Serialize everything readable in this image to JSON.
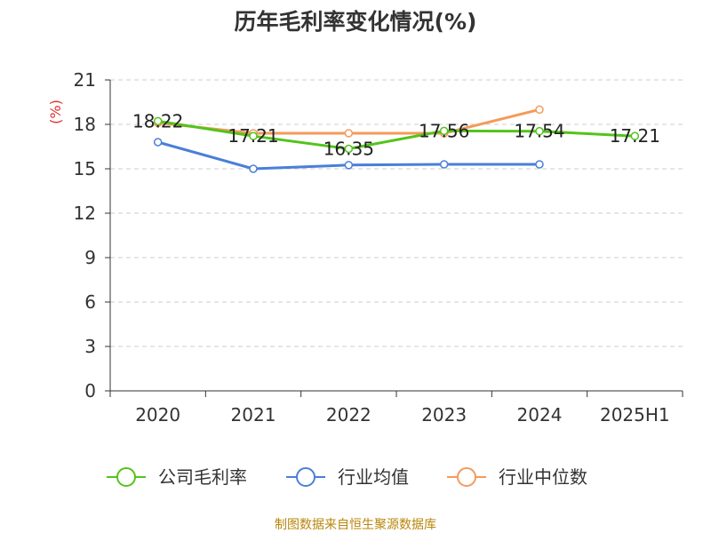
{
  "chart_data": {
    "type": "line",
    "title": "历年毛利率变化情况(%)",
    "ylabel": "(%)",
    "categories": [
      "2020",
      "2021",
      "2022",
      "2023",
      "2024",
      "2025H1"
    ],
    "ylim": [
      0,
      21
    ],
    "yticks": [
      0,
      3,
      6,
      9,
      12,
      15,
      18,
      21
    ],
    "grid": true,
    "legend_position": "bottom",
    "series": [
      {
        "name": "公司毛利率",
        "color": "#52c41a",
        "values": [
          18.22,
          17.21,
          16.35,
          17.56,
          17.54,
          17.21
        ],
        "labels": [
          "18.22",
          "17.21",
          "16.35",
          "17.56",
          "17.54",
          "17.21"
        ]
      },
      {
        "name": "行业均值",
        "color": "#4a7fd9",
        "values": [
          16.8,
          15.0,
          15.25,
          15.3,
          15.3,
          null
        ]
      },
      {
        "name": "行业中位数",
        "color": "#f59a5a",
        "values": [
          18.1,
          17.4,
          17.4,
          17.4,
          19.0,
          null
        ]
      }
    ]
  },
  "source_text": "制图数据来自恒生聚源数据库"
}
